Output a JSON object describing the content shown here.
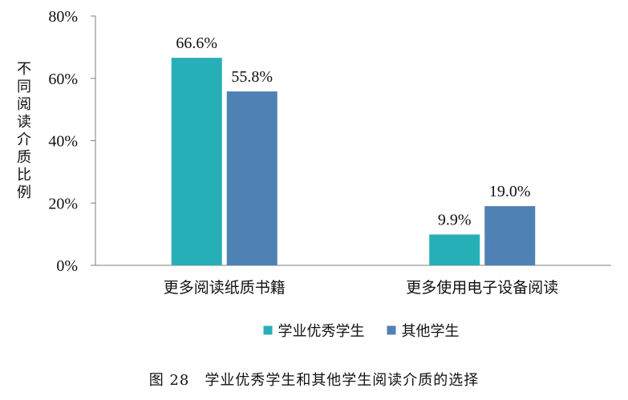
{
  "chart_data": {
    "type": "bar",
    "categories": [
      "更多阅读纸质书籍",
      "更多使用电子设备阅读"
    ],
    "series": [
      {
        "name": "学业优秀学生",
        "values": [
          66.6,
          9.9
        ],
        "labels": [
          "66.6%",
          "9.9%"
        ],
        "color": "#27AFB8"
      },
      {
        "name": "其他学生",
        "values": [
          55.8,
          19.0
        ],
        "labels": [
          "55.8%",
          "19.0%"
        ],
        "color": "#4F81B4"
      }
    ],
    "ylabel": "不同阅读介质比例",
    "ylim": [
      0,
      80
    ],
    "yticks": [
      0,
      20,
      40,
      60,
      80
    ],
    "ytick_labels": [
      "0%",
      "20%",
      "40%",
      "60%",
      "80%"
    ],
    "grid": false,
    "legend_position": "bottom"
  },
  "caption": "图 28　学业优秀学生和其他学生阅读介质的选择"
}
